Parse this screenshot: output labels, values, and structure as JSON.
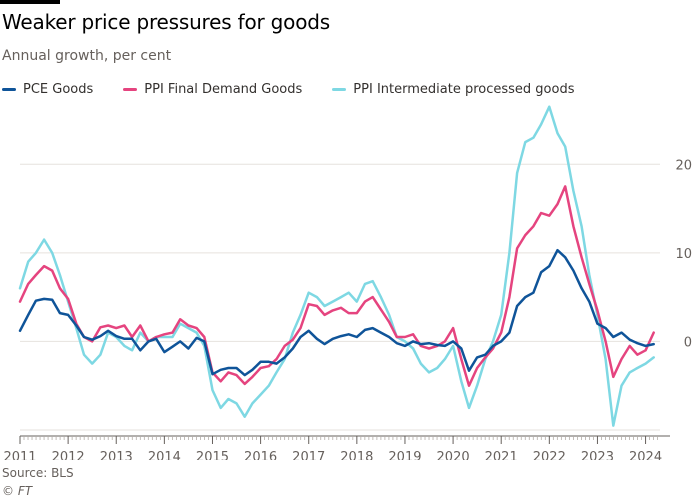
{
  "header": {
    "title": "Weaker price pressures for goods",
    "subtitle": "Annual growth, per cent"
  },
  "footer": {
    "source": "Source: BLS",
    "copyright": "© FT"
  },
  "chart_data": {
    "type": "line",
    "title": "Weaker price pressures for goods",
    "subtitle": "Annual growth, per cent",
    "xlabel": "",
    "ylabel": "",
    "xlim": [
      2011.0,
      2024.3
    ],
    "ylim": [
      -10,
      25
    ],
    "grid": true,
    "legend_position": "top",
    "x_ticks": [
      "2011",
      "2012",
      "2013",
      "2014",
      "2015",
      "2016",
      "2017",
      "2018",
      "2019",
      "2020",
      "2021",
      "2022",
      "2023",
      "2024"
    ],
    "y_ticks": [
      0,
      10,
      20
    ],
    "series": [
      {
        "name": "PCE Goods",
        "color": "#0f5499",
        "points": [
          [
            2011.0,
            1.2
          ],
          [
            2011.17,
            3.0
          ],
          [
            2011.33,
            4.6
          ],
          [
            2011.5,
            4.8
          ],
          [
            2011.67,
            4.7
          ],
          [
            2011.83,
            3.2
          ],
          [
            2012.0,
            3.0
          ],
          [
            2012.17,
            1.8
          ],
          [
            2012.33,
            0.5
          ],
          [
            2012.5,
            0.2
          ],
          [
            2012.67,
            0.6
          ],
          [
            2012.83,
            1.2
          ],
          [
            2013.0,
            0.6
          ],
          [
            2013.17,
            0.3
          ],
          [
            2013.33,
            0.3
          ],
          [
            2013.5,
            -1.0
          ],
          [
            2013.67,
            0.0
          ],
          [
            2013.83,
            0.3
          ],
          [
            2014.0,
            -1.2
          ],
          [
            2014.17,
            -0.6
          ],
          [
            2014.33,
            0.0
          ],
          [
            2014.5,
            -0.8
          ],
          [
            2014.67,
            0.4
          ],
          [
            2014.83,
            0.0
          ],
          [
            2015.0,
            -3.7
          ],
          [
            2015.17,
            -3.2
          ],
          [
            2015.33,
            -3.0
          ],
          [
            2015.5,
            -3.0
          ],
          [
            2015.67,
            -3.8
          ],
          [
            2015.83,
            -3.2
          ],
          [
            2016.0,
            -2.3
          ],
          [
            2016.17,
            -2.3
          ],
          [
            2016.33,
            -2.5
          ],
          [
            2016.5,
            -1.8
          ],
          [
            2016.67,
            -0.8
          ],
          [
            2016.83,
            0.5
          ],
          [
            2017.0,
            1.2
          ],
          [
            2017.17,
            0.3
          ],
          [
            2017.33,
            -0.3
          ],
          [
            2017.5,
            0.3
          ],
          [
            2017.67,
            0.6
          ],
          [
            2017.83,
            0.8
          ],
          [
            2018.0,
            0.5
          ],
          [
            2018.17,
            1.3
          ],
          [
            2018.33,
            1.5
          ],
          [
            2018.5,
            1.0
          ],
          [
            2018.67,
            0.5
          ],
          [
            2018.83,
            -0.2
          ],
          [
            2019.0,
            -0.5
          ],
          [
            2019.17,
            0.0
          ],
          [
            2019.33,
            -0.3
          ],
          [
            2019.5,
            -0.2
          ],
          [
            2019.67,
            -0.4
          ],
          [
            2019.83,
            -0.5
          ],
          [
            2020.0,
            0.0
          ],
          [
            2020.17,
            -0.8
          ],
          [
            2020.33,
            -3.3
          ],
          [
            2020.5,
            -1.8
          ],
          [
            2020.67,
            -1.5
          ],
          [
            2020.83,
            -0.5
          ],
          [
            2021.0,
            0.0
          ],
          [
            2021.17,
            1.0
          ],
          [
            2021.33,
            4.0
          ],
          [
            2021.5,
            5.0
          ],
          [
            2021.67,
            5.5
          ],
          [
            2021.83,
            7.8
          ],
          [
            2022.0,
            8.5
          ],
          [
            2022.17,
            10.3
          ],
          [
            2022.33,
            9.5
          ],
          [
            2022.5,
            8.0
          ],
          [
            2022.67,
            6.0
          ],
          [
            2022.83,
            4.5
          ],
          [
            2023.0,
            2.0
          ],
          [
            2023.17,
            1.5
          ],
          [
            2023.33,
            0.5
          ],
          [
            2023.5,
            1.0
          ],
          [
            2023.67,
            0.2
          ],
          [
            2023.83,
            -0.2
          ],
          [
            2024.0,
            -0.5
          ],
          [
            2024.17,
            -0.3
          ]
        ]
      },
      {
        "name": "PPI Final Demand Goods",
        "color": "#e5447f",
        "points": [
          [
            2011.0,
            4.5
          ],
          [
            2011.17,
            6.5
          ],
          [
            2011.33,
            7.5
          ],
          [
            2011.5,
            8.5
          ],
          [
            2011.67,
            8.0
          ],
          [
            2011.83,
            6.0
          ],
          [
            2012.0,
            4.8
          ],
          [
            2012.17,
            2.0
          ],
          [
            2012.33,
            0.5
          ],
          [
            2012.5,
            0.0
          ],
          [
            2012.67,
            1.6
          ],
          [
            2012.83,
            1.8
          ],
          [
            2013.0,
            1.5
          ],
          [
            2013.17,
            1.8
          ],
          [
            2013.33,
            0.5
          ],
          [
            2013.5,
            1.8
          ],
          [
            2013.67,
            0.0
          ],
          [
            2013.83,
            0.5
          ],
          [
            2014.0,
            0.8
          ],
          [
            2014.17,
            1.0
          ],
          [
            2014.33,
            2.5
          ],
          [
            2014.5,
            1.8
          ],
          [
            2014.67,
            1.5
          ],
          [
            2014.83,
            0.5
          ],
          [
            2015.0,
            -3.5
          ],
          [
            2015.17,
            -4.5
          ],
          [
            2015.33,
            -3.5
          ],
          [
            2015.5,
            -3.8
          ],
          [
            2015.67,
            -4.8
          ],
          [
            2015.83,
            -4.0
          ],
          [
            2016.0,
            -3.0
          ],
          [
            2016.17,
            -2.8
          ],
          [
            2016.33,
            -2.0
          ],
          [
            2016.5,
            -0.5
          ],
          [
            2016.67,
            0.2
          ],
          [
            2016.83,
            1.5
          ],
          [
            2017.0,
            4.2
          ],
          [
            2017.17,
            4.0
          ],
          [
            2017.33,
            3.0
          ],
          [
            2017.5,
            3.5
          ],
          [
            2017.67,
            3.8
          ],
          [
            2017.83,
            3.2
          ],
          [
            2018.0,
            3.2
          ],
          [
            2018.17,
            4.5
          ],
          [
            2018.33,
            5.0
          ],
          [
            2018.5,
            3.6
          ],
          [
            2018.67,
            2.2
          ],
          [
            2018.83,
            0.5
          ],
          [
            2019.0,
            0.5
          ],
          [
            2019.17,
            0.8
          ],
          [
            2019.33,
            -0.5
          ],
          [
            2019.5,
            -0.8
          ],
          [
            2019.67,
            -0.5
          ],
          [
            2019.83,
            0.0
          ],
          [
            2020.0,
            1.5
          ],
          [
            2020.17,
            -2.0
          ],
          [
            2020.33,
            -5.0
          ],
          [
            2020.5,
            -3.0
          ],
          [
            2020.67,
            -1.8
          ],
          [
            2020.83,
            -0.8
          ],
          [
            2021.0,
            1.0
          ],
          [
            2021.17,
            5.0
          ],
          [
            2021.33,
            10.5
          ],
          [
            2021.5,
            12.0
          ],
          [
            2021.67,
            13.0
          ],
          [
            2021.83,
            14.5
          ],
          [
            2022.0,
            14.2
          ],
          [
            2022.17,
            15.5
          ],
          [
            2022.33,
            17.5
          ],
          [
            2022.5,
            13.0
          ],
          [
            2022.67,
            9.5
          ],
          [
            2022.83,
            6.5
          ],
          [
            2023.0,
            3.5
          ],
          [
            2023.17,
            0.0
          ],
          [
            2023.33,
            -4.0
          ],
          [
            2023.5,
            -2.0
          ],
          [
            2023.67,
            -0.5
          ],
          [
            2023.83,
            -1.5
          ],
          [
            2024.0,
            -1.0
          ],
          [
            2024.17,
            1.0
          ]
        ]
      },
      {
        "name": "PPI Intermediate processed goods",
        "color": "#7ed8e3",
        "points": [
          [
            2011.0,
            6.0
          ],
          [
            2011.17,
            9.0
          ],
          [
            2011.33,
            10.0
          ],
          [
            2011.5,
            11.5
          ],
          [
            2011.67,
            10.0
          ],
          [
            2011.83,
            7.5
          ],
          [
            2012.0,
            4.5
          ],
          [
            2012.17,
            1.5
          ],
          [
            2012.33,
            -1.5
          ],
          [
            2012.5,
            -2.5
          ],
          [
            2012.67,
            -1.5
          ],
          [
            2012.83,
            1.0
          ],
          [
            2013.0,
            0.5
          ],
          [
            2013.17,
            -0.5
          ],
          [
            2013.33,
            -1.0
          ],
          [
            2013.5,
            1.0
          ],
          [
            2013.67,
            0.0
          ],
          [
            2013.83,
            0.5
          ],
          [
            2014.0,
            0.5
          ],
          [
            2014.17,
            0.5
          ],
          [
            2014.33,
            2.0
          ],
          [
            2014.5,
            1.5
          ],
          [
            2014.67,
            1.0
          ],
          [
            2014.83,
            -0.5
          ],
          [
            2015.0,
            -5.5
          ],
          [
            2015.17,
            -7.5
          ],
          [
            2015.33,
            -6.5
          ],
          [
            2015.5,
            -7.0
          ],
          [
            2015.67,
            -8.5
          ],
          [
            2015.83,
            -7.0
          ],
          [
            2016.0,
            -6.0
          ],
          [
            2016.17,
            -5.0
          ],
          [
            2016.33,
            -3.5
          ],
          [
            2016.5,
            -2.0
          ],
          [
            2016.67,
            1.0
          ],
          [
            2016.83,
            3.0
          ],
          [
            2017.0,
            5.5
          ],
          [
            2017.17,
            5.0
          ],
          [
            2017.33,
            4.0
          ],
          [
            2017.5,
            4.5
          ],
          [
            2017.67,
            5.0
          ],
          [
            2017.83,
            5.5
          ],
          [
            2018.0,
            4.5
          ],
          [
            2018.17,
            6.5
          ],
          [
            2018.33,
            6.8
          ],
          [
            2018.5,
            5.0
          ],
          [
            2018.67,
            3.0
          ],
          [
            2018.83,
            0.5
          ],
          [
            2019.0,
            0.0
          ],
          [
            2019.17,
            -0.8
          ],
          [
            2019.33,
            -2.5
          ],
          [
            2019.5,
            -3.5
          ],
          [
            2019.67,
            -3.0
          ],
          [
            2019.83,
            -2.0
          ],
          [
            2020.0,
            -0.5
          ],
          [
            2020.17,
            -4.5
          ],
          [
            2020.33,
            -7.5
          ],
          [
            2020.5,
            -5.0
          ],
          [
            2020.67,
            -2.0
          ],
          [
            2020.83,
            0.0
          ],
          [
            2021.0,
            3.0
          ],
          [
            2021.17,
            10.0
          ],
          [
            2021.33,
            19.0
          ],
          [
            2021.5,
            22.5
          ],
          [
            2021.67,
            23.0
          ],
          [
            2021.83,
            24.5
          ],
          [
            2022.0,
            26.5
          ],
          [
            2022.17,
            23.5
          ],
          [
            2022.33,
            22.0
          ],
          [
            2022.5,
            17.0
          ],
          [
            2022.67,
            13.0
          ],
          [
            2022.83,
            7.5
          ],
          [
            2023.0,
            3.0
          ],
          [
            2023.17,
            -2.0
          ],
          [
            2023.33,
            -9.5
          ],
          [
            2023.5,
            -5.0
          ],
          [
            2023.67,
            -3.5
          ],
          [
            2023.83,
            -3.0
          ],
          [
            2024.0,
            -2.5
          ],
          [
            2024.17,
            -1.8
          ]
        ]
      }
    ]
  }
}
